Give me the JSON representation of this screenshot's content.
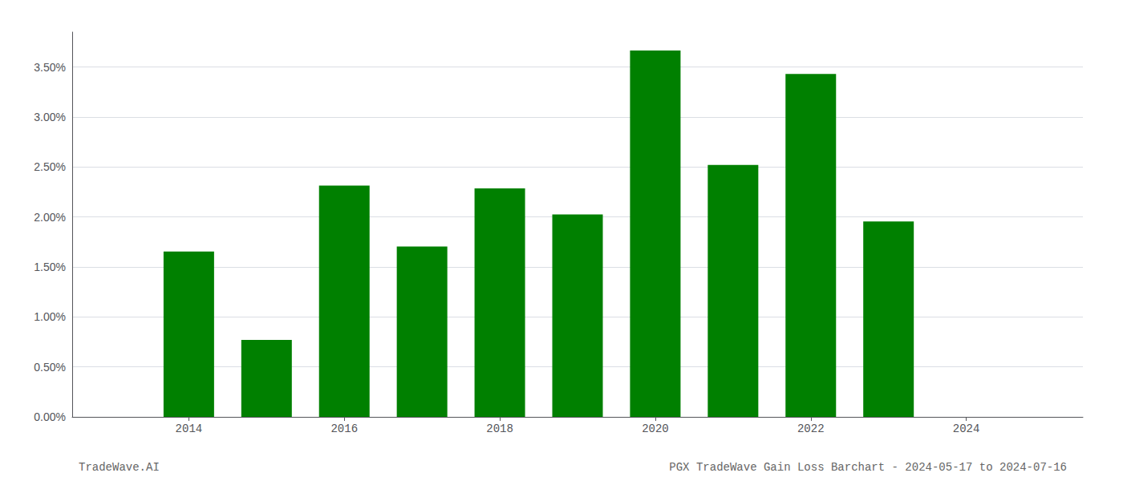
{
  "chart_data": {
    "type": "bar",
    "x": [
      2014,
      2015,
      2016,
      2017,
      2018,
      2019,
      2020,
      2021,
      2022,
      2023
    ],
    "values": [
      0.01655,
      0.0077,
      0.02315,
      0.01705,
      0.02285,
      0.02025,
      0.03665,
      0.0252,
      0.0343,
      0.01955
    ],
    "color": "#008000",
    "xlim": [
      2012.5,
      2025.5
    ],
    "xticks": [
      2014,
      2016,
      2018,
      2020,
      2022,
      2024
    ],
    "ylim": [
      0,
      0.0385
    ],
    "yticks": [
      {
        "value": 0.0,
        "label": "0.00%"
      },
      {
        "value": 0.005,
        "label": "0.50%"
      },
      {
        "value": 0.01,
        "label": "1.00%"
      },
      {
        "value": 0.015,
        "label": "1.50%"
      },
      {
        "value": 0.02,
        "label": "2.00%"
      },
      {
        "value": 0.025,
        "label": "2.50%"
      },
      {
        "value": 0.03,
        "label": "3.00%"
      },
      {
        "value": 0.035,
        "label": "3.50%"
      }
    ],
    "grid": true,
    "annotations": [
      "TradeWave.AI",
      "PGX TradeWave Gain Loss Barchart - 2024-05-17 to 2024-07-16"
    ]
  }
}
